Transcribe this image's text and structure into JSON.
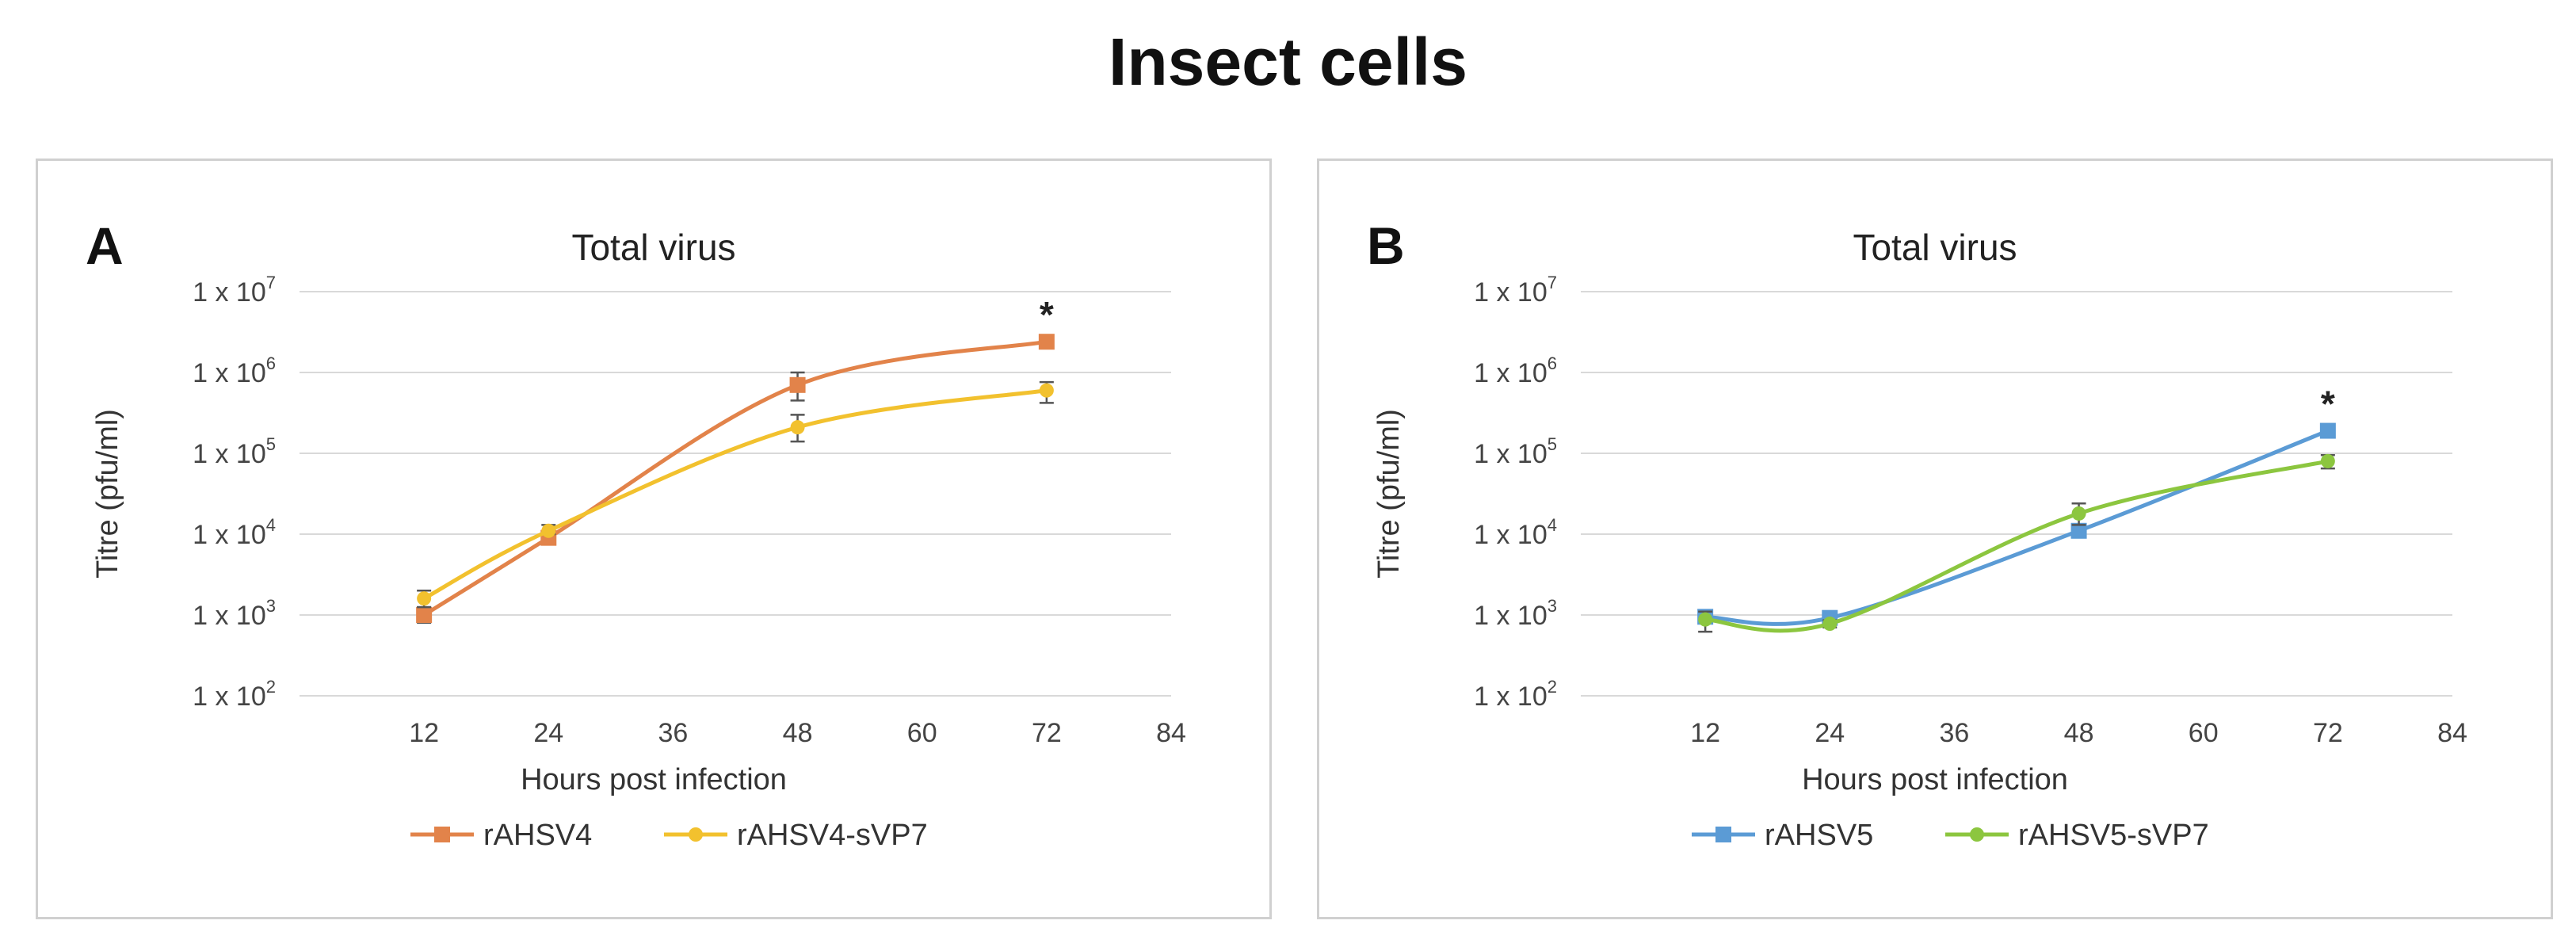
{
  "page_title": "Insect cells",
  "chart_data": [
    {
      "panel": "A",
      "type": "line",
      "title": "Total virus",
      "xlabel": "Hours post infection",
      "ylabel": "Titre (pfu/ml)",
      "yscale": "log",
      "xticks": [
        12,
        24,
        36,
        48,
        60,
        72,
        84
      ],
      "yticks": [
        {
          "value": 100,
          "base": "1 x 10",
          "exp": "2"
        },
        {
          "value": 1000,
          "base": "1 x 10",
          "exp": "3"
        },
        {
          "value": 10000,
          "base": "1 x 10",
          "exp": "4"
        },
        {
          "value": 100000,
          "base": "1 x 10",
          "exp": "5"
        },
        {
          "value": 1000000,
          "base": "1 x 10",
          "exp": "6"
        },
        {
          "value": 10000000,
          "base": "1 x 10",
          "exp": "7"
        }
      ],
      "xlim": [
        0,
        84
      ],
      "ylim": [
        100,
        10000000
      ],
      "grid": true,
      "legend_position": "bottom",
      "series": [
        {
          "name": "rAHSV4",
          "color": "#E2834A",
          "marker": "square",
          "x": [
            12,
            24,
            48,
            72
          ],
          "values": [
            1000,
            9000,
            700000,
            2400000
          ],
          "err_low": [
            800,
            8000,
            450000,
            2200000
          ],
          "err_high": [
            1250,
            10000,
            1000000,
            2700000
          ]
        },
        {
          "name": "rAHSV4-sVP7",
          "color": "#F2C12E",
          "marker": "circle",
          "x": [
            12,
            24,
            48,
            72
          ],
          "values": [
            1600,
            11000,
            210000,
            600000
          ],
          "err_low": [
            1250,
            10000,
            140000,
            420000
          ],
          "err_high": [
            2000,
            13000,
            300000,
            760000
          ]
        }
      ],
      "annotations": [
        {
          "text": "*",
          "x": 72,
          "y": 2400000
        }
      ]
    },
    {
      "panel": "B",
      "type": "line",
      "title": "Total virus",
      "xlabel": "Hours post infection",
      "ylabel": "Titre (pfu/ml)",
      "yscale": "log",
      "xticks": [
        12,
        24,
        36,
        48,
        60,
        72,
        84
      ],
      "yticks": [
        {
          "value": 100,
          "base": "1 x 10",
          "exp": "2"
        },
        {
          "value": 1000,
          "base": "1 x 10",
          "exp": "3"
        },
        {
          "value": 10000,
          "base": "1 x 10",
          "exp": "4"
        },
        {
          "value": 100000,
          "base": "1 x 10",
          "exp": "5"
        },
        {
          "value": 1000000,
          "base": "1 x 10",
          "exp": "6"
        },
        {
          "value": 10000000,
          "base": "1 x 10",
          "exp": "7"
        }
      ],
      "xlim": [
        0,
        84
      ],
      "ylim": [
        100,
        10000000
      ],
      "grid": true,
      "legend_position": "bottom",
      "series": [
        {
          "name": "rAHSV5",
          "color": "#5B9BD5",
          "marker": "square",
          "x": [
            12,
            24,
            48,
            72
          ],
          "values": [
            950,
            920,
            11000,
            190000
          ],
          "err_low": [
            800,
            850,
            9500,
            175000
          ],
          "err_high": [
            1100,
            1000,
            13000,
            205000
          ]
        },
        {
          "name": "rAHSV5-sVP7",
          "color": "#8CC63F",
          "marker": "circle",
          "x": [
            12,
            24,
            48,
            72
          ],
          "values": [
            880,
            780,
            18000,
            80000
          ],
          "err_low": [
            620,
            700,
            13000,
            65000
          ],
          "err_high": [
            1100,
            860,
            24000,
            95000
          ]
        }
      ],
      "annotations": [
        {
          "text": "*",
          "x": 72,
          "y": 190000
        }
      ]
    }
  ]
}
